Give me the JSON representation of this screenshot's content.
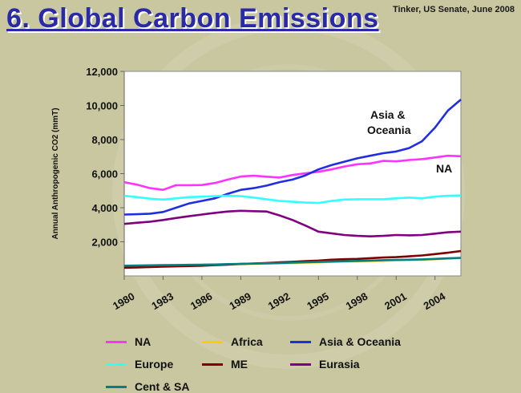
{
  "header": {
    "title": "6. Global Carbon Emissions",
    "source": "Tinker, US Senate, June 2008"
  },
  "chart_data": {
    "type": "line",
    "ylabel": "Annual Anthropogenic CO2 (mmT)",
    "xlabel": "",
    "ylim": [
      0,
      12000
    ],
    "xlim": [
      1980,
      2006
    ],
    "y_ticks": [
      "2,000",
      "4,000",
      "6,000",
      "8,000",
      "10,000",
      "12,000"
    ],
    "x_ticks": [
      "1980",
      "1983",
      "1986",
      "1989",
      "1992",
      "1995",
      "1998",
      "2001",
      "2004"
    ],
    "grid": false,
    "legend_position": "bottom",
    "x": [
      1980,
      1981,
      1982,
      1983,
      1984,
      1985,
      1986,
      1987,
      1988,
      1989,
      1990,
      1991,
      1992,
      1993,
      1994,
      1995,
      1996,
      1997,
      1998,
      1999,
      2000,
      2001,
      2002,
      2003,
      2004,
      2005,
      2006
    ],
    "series": [
      {
        "name": "NA",
        "color": "#ff33ff",
        "values": [
          5500,
          5350,
          5150,
          5050,
          5320,
          5320,
          5330,
          5450,
          5650,
          5830,
          5880,
          5820,
          5770,
          5920,
          6020,
          6110,
          6250,
          6420,
          6550,
          6600,
          6750,
          6720,
          6800,
          6850,
          6950,
          7050,
          7020
        ]
      },
      {
        "name": "Africa",
        "color": "#ffcc00",
        "values": [
          540,
          560,
          570,
          590,
          600,
          620,
          630,
          650,
          670,
          690,
          710,
          720,
          740,
          760,
          780,
          790,
          820,
          840,
          860,
          870,
          890,
          910,
          930,
          950,
          980,
          1010,
          1040
        ]
      },
      {
        "name": "Asia & Oceania",
        "color": "#1f2fe0",
        "values": [
          3600,
          3620,
          3650,
          3750,
          4000,
          4250,
          4400,
          4550,
          4820,
          5050,
          5150,
          5300,
          5500,
          5650,
          5900,
          6250,
          6500,
          6700,
          6900,
          7050,
          7200,
          7300,
          7500,
          7900,
          8700,
          9700,
          10350
        ]
      },
      {
        "name": "Europe",
        "color": "#33ffff",
        "values": [
          4700,
          4620,
          4530,
          4480,
          4550,
          4620,
          4650,
          4680,
          4700,
          4680,
          4600,
          4500,
          4400,
          4350,
          4300,
          4280,
          4400,
          4480,
          4500,
          4500,
          4500,
          4550,
          4600,
          4550,
          4650,
          4700,
          4720
        ]
      },
      {
        "name": "ME",
        "color": "#800000",
        "values": [
          480,
          500,
          520,
          540,
          560,
          580,
          600,
          630,
          660,
          700,
          730,
          760,
          800,
          830,
          870,
          900,
          950,
          980,
          1000,
          1040,
          1080,
          1100,
          1150,
          1200,
          1280,
          1360,
          1460
        ]
      },
      {
        "name": "Eurasia",
        "color": "#800080",
        "values": [
          3050,
          3120,
          3180,
          3280,
          3400,
          3500,
          3600,
          3700,
          3780,
          3820,
          3800,
          3780,
          3550,
          3280,
          2950,
          2600,
          2500,
          2400,
          2350,
          2320,
          2350,
          2400,
          2380,
          2400,
          2480,
          2560,
          2600
        ]
      },
      {
        "name": "Cent & SA",
        "color": "#008080",
        "values": [
          600,
          610,
          620,
          630,
          640,
          650,
          660,
          670,
          690,
          700,
          720,
          740,
          760,
          780,
          800,
          820,
          840,
          860,
          880,
          900,
          920,
          940,
          950,
          970,
          1000,
          1030,
          1060
        ]
      }
    ],
    "annotations": [
      {
        "text": "Asia &",
        "series": "Asia & Oceania"
      },
      {
        "text": "Oceania",
        "series": "Asia & Oceania"
      },
      {
        "text": "NA",
        "series": "NA"
      }
    ]
  },
  "legend": {
    "items": [
      {
        "label": "NA",
        "color": "#ff33ff"
      },
      {
        "label": "Africa",
        "color": "#ffcc00"
      },
      {
        "label": "Asia & Oceania",
        "color": "#1f2fe0"
      },
      {
        "label": "Europe",
        "color": "#33ffff"
      },
      {
        "label": "ME",
        "color": "#800000"
      },
      {
        "label": "Eurasia",
        "color": "#800080"
      },
      {
        "label": "Cent & SA",
        "color": "#008080"
      }
    ]
  }
}
